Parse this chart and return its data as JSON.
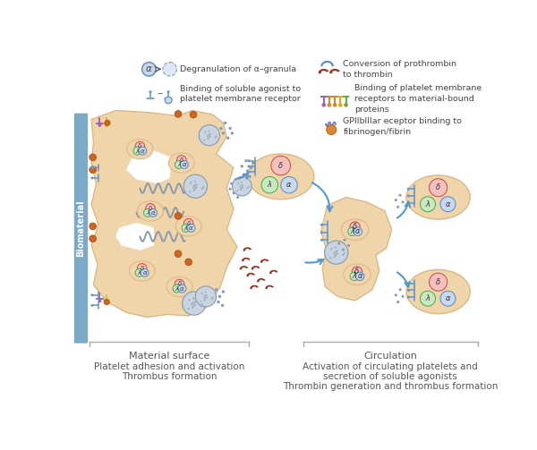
{
  "bg_color": "#ffffff",
  "biomaterial_bar_color": "#7aaac8",
  "platelet_fill": "#f0d5aa",
  "platelet_border": "#dbb888",
  "circle_red_fill": "#f5c0c0",
  "circle_red_border": "#cc4444",
  "circle_green_fill": "#c8e8c0",
  "circle_green_border": "#44aa44",
  "circle_blue_fill": "#c8d8ee",
  "circle_blue_border": "#5588bb",
  "wavy_color": "#8899aa",
  "orange_color": "#cc6622",
  "dark_red_color": "#993322",
  "arrow_color": "#5599cc",
  "text_color": "#444444",
  "bottom_label_color": "#555555",
  "receptor_blue": "#6699cc",
  "bottom_text": {
    "mat_surface": "Material surface",
    "circulation": "Circulation",
    "left_desc1": "Platelet adhesion and activation",
    "left_desc2": "Thrombus formation",
    "right_desc1": "Activation of circulating platelets and",
    "right_desc2": "secretion of soluble agonists",
    "right_desc3": "Thrombin generation and thrombus formation"
  }
}
